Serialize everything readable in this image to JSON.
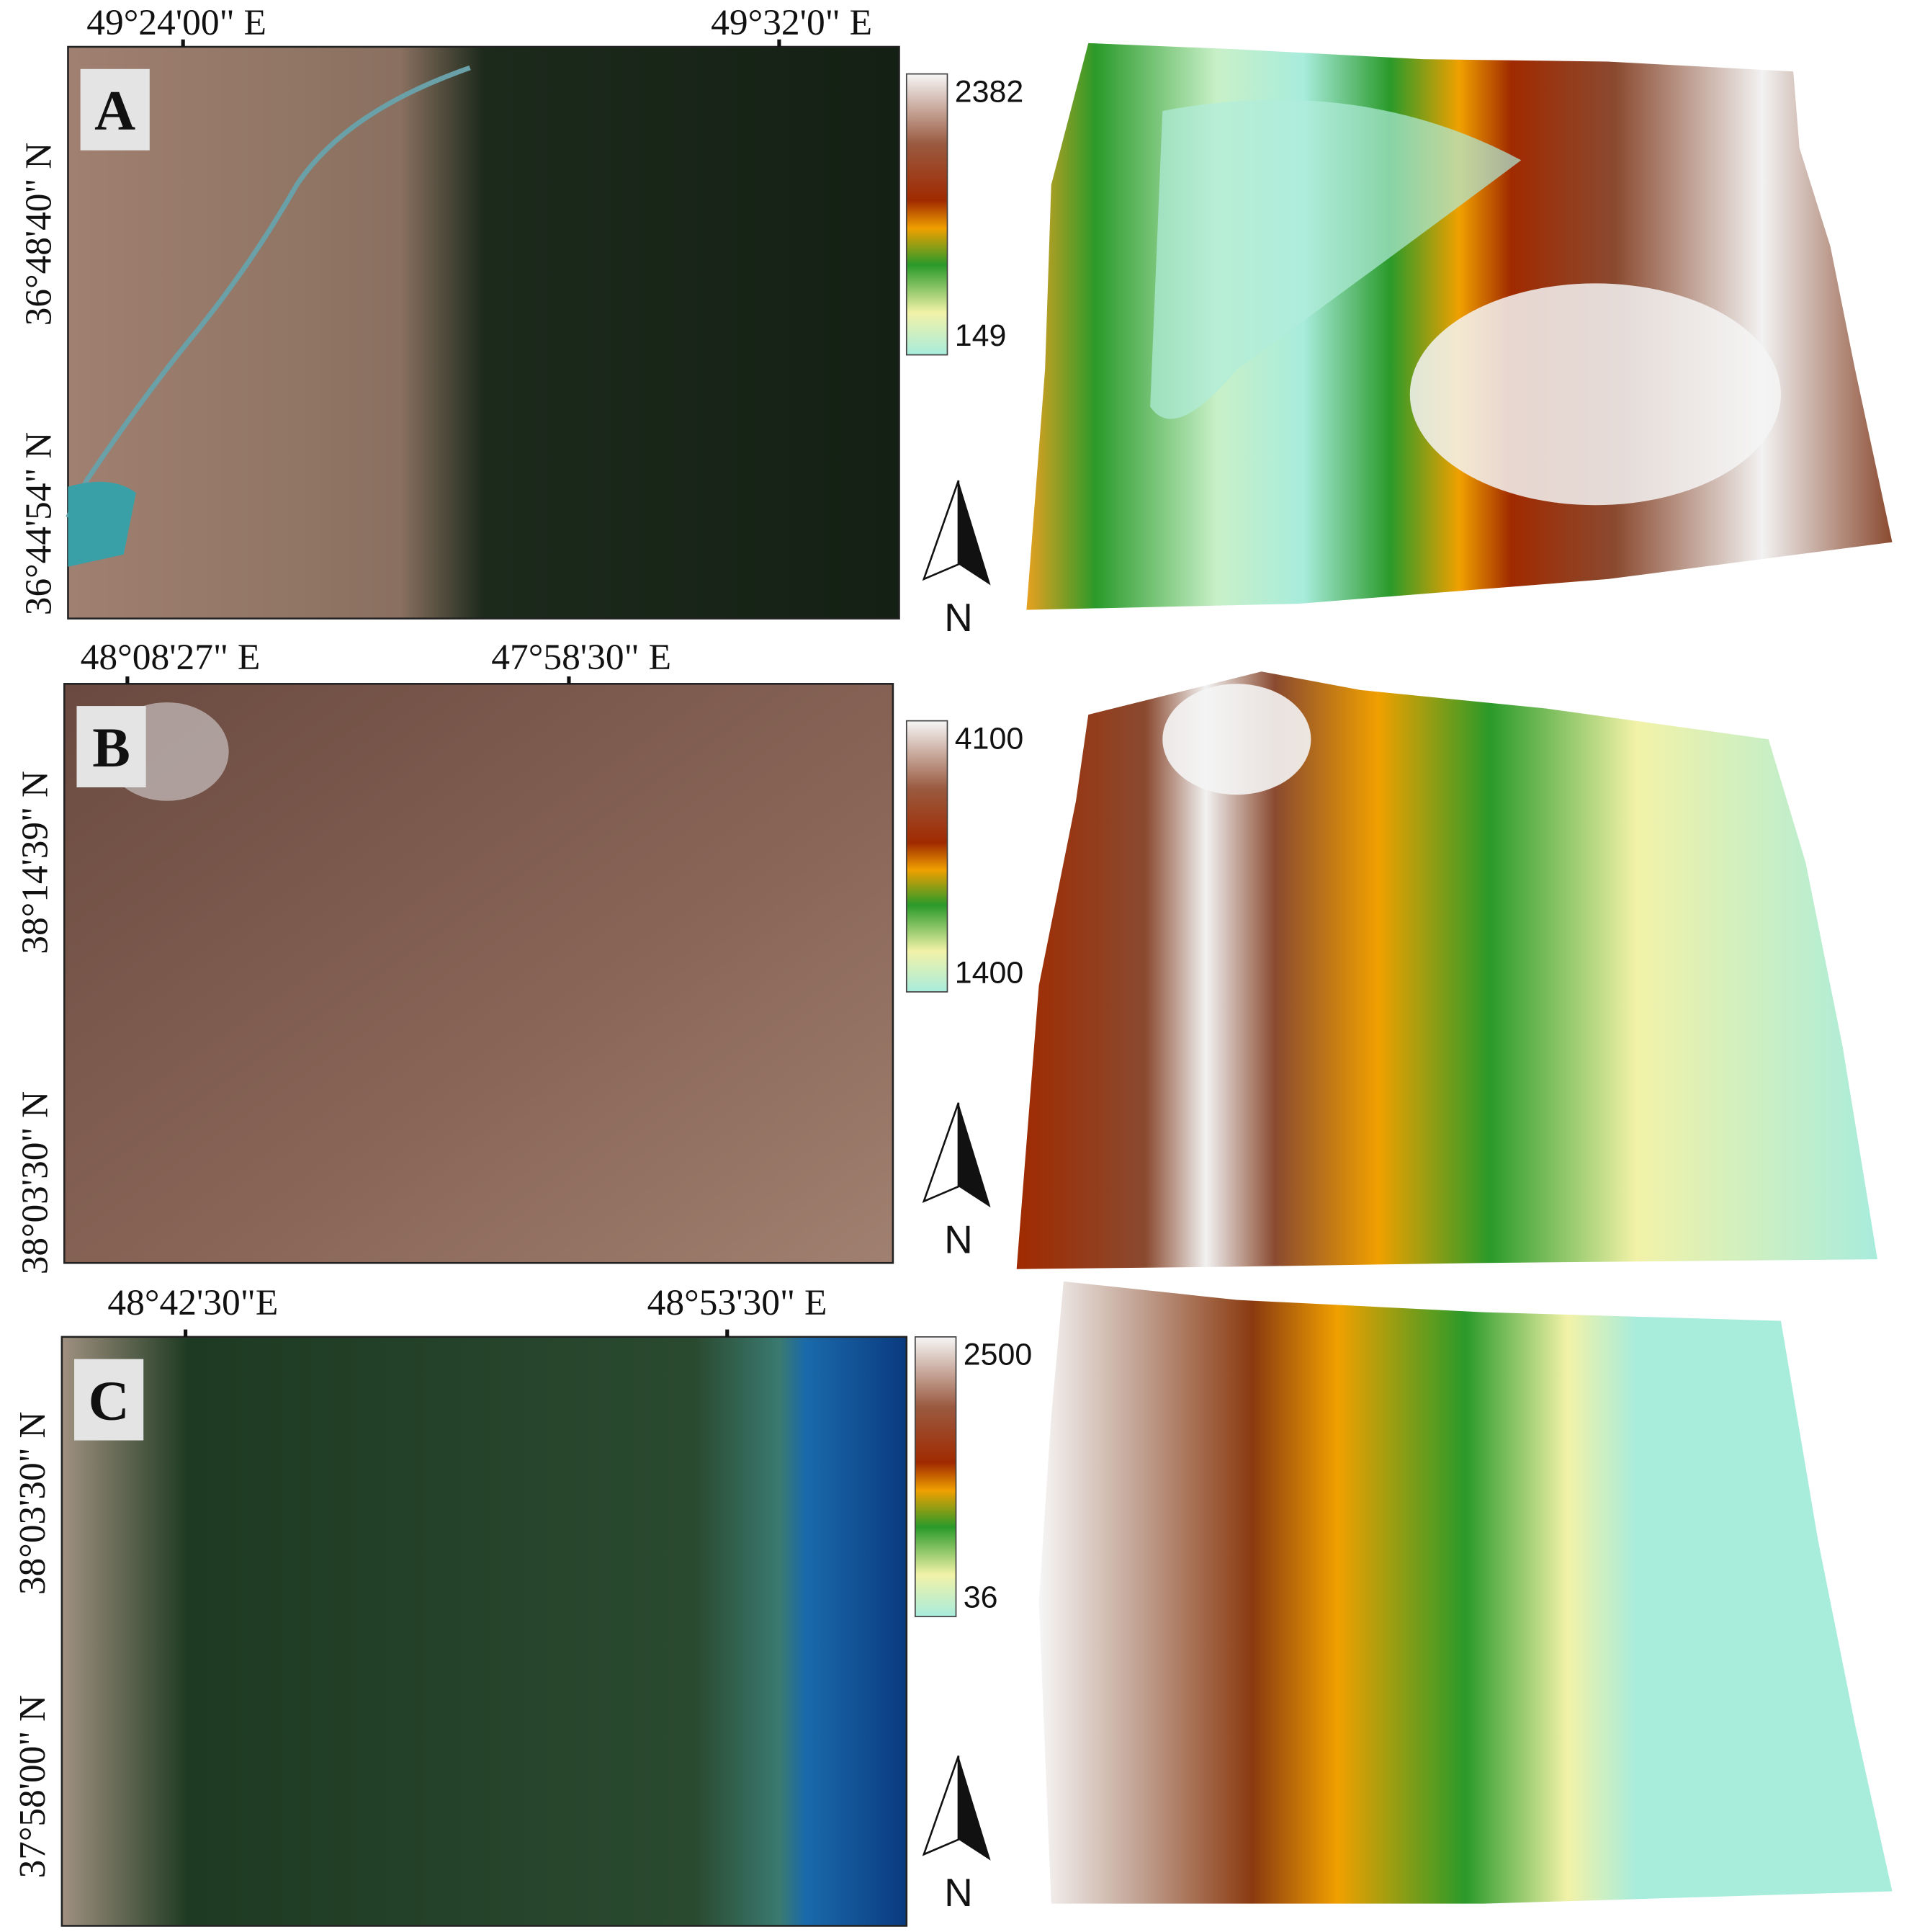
{
  "panels": [
    {
      "label": "A",
      "x_labels": [
        "49°24'00\" E",
        "49°32'0\" E"
      ],
      "y_labels": [
        "36°48'40\" N",
        "36°44'54\" N"
      ],
      "elevation_max": 2382,
      "elevation_min": 149,
      "north": "N"
    },
    {
      "label": "B",
      "x_labels": [
        "48°08'27\" E",
        "47°58'30\" E"
      ],
      "y_labels": [
        "38°14'39\" N",
        "38°03'30\" N"
      ],
      "elevation_max": 4100,
      "elevation_min": 1400,
      "north": "N"
    },
    {
      "label": "C",
      "x_labels": [
        "48°42'30\"E",
        "48°53'30\" E"
      ],
      "y_labels": [
        "38°03'30\" N",
        "37°58'00\" N"
      ],
      "elevation_max": 2500,
      "elevation_min": 36,
      "north": "N"
    }
  ]
}
